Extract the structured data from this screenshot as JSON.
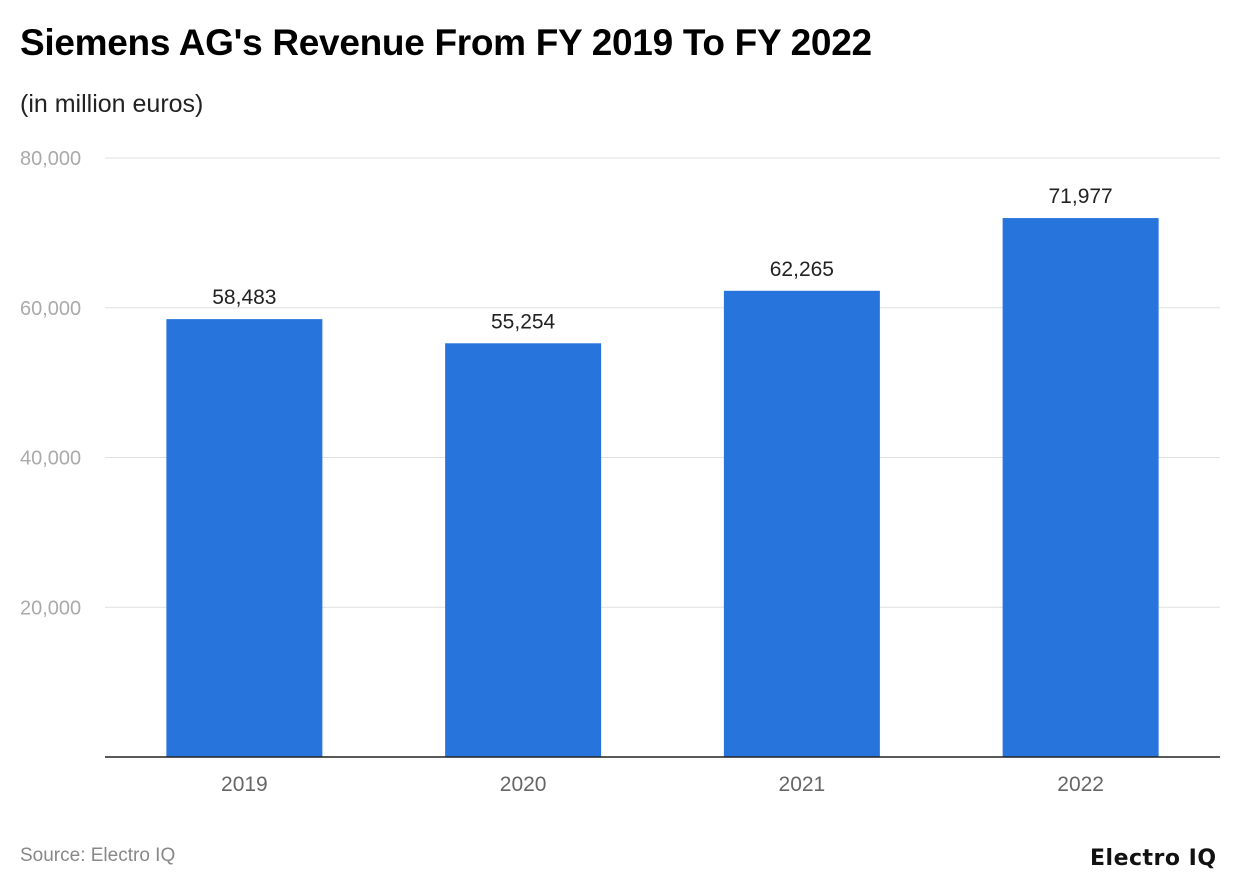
{
  "chart_data": {
    "type": "bar",
    "title": "Siemens AG's Revenue From FY 2019 To FY 2022",
    "subtitle": "(in million euros)",
    "categories": [
      "2019",
      "2020",
      "2021",
      "2022"
    ],
    "values": [
      58483,
      55254,
      62265,
      71977
    ],
    "data_labels": [
      "58,483",
      "55,254",
      "62,265",
      "71,977"
    ],
    "xlabel": "",
    "ylabel": "",
    "ylim": [
      0,
      80000
    ],
    "yticks": [
      20000,
      40000,
      60000,
      80000
    ],
    "ytick_labels": [
      "20,000",
      "40,000",
      "60,000",
      "80,000"
    ],
    "grid": true,
    "bar_color": "#2775dc"
  },
  "footer": {
    "source": "Source: Electro IQ",
    "logo": "Electro IQ"
  }
}
